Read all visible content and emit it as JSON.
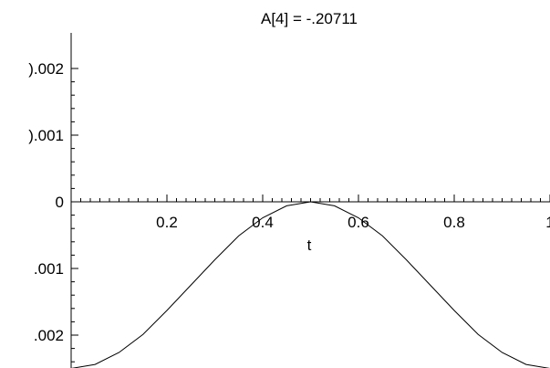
{
  "chart_data": {
    "type": "line",
    "title": "A[4] = -.20711",
    "xlabel": "t",
    "ylabel": "",
    "xlim": [
      0,
      1
    ],
    "ylim": [
      -0.0025,
      0.0021
    ],
    "grid": false,
    "x_ticks": [
      {
        "value": 0.2,
        "label": "0.2"
      },
      {
        "value": 0.4,
        "label": "0.4"
      },
      {
        "value": 0.6,
        "label": "0.6"
      },
      {
        "value": 0.8,
        "label": "0.8"
      },
      {
        "value": 1.0,
        "label": "1"
      }
    ],
    "y_ticks": [
      {
        "value": 0.002,
        "label": ").002"
      },
      {
        "value": 0.001,
        "label": ").001"
      },
      {
        "value": 0.0,
        "label": "0"
      },
      {
        "value": -0.001,
        "label": ".001"
      },
      {
        "value": -0.002,
        "label": ".002"
      }
    ],
    "series": [
      {
        "color": "#000000",
        "x": [
          0.0,
          0.05,
          0.1,
          0.15,
          0.2,
          0.25,
          0.3,
          0.35,
          0.4,
          0.45,
          0.5,
          0.55,
          0.6,
          0.65,
          0.7,
          0.75,
          0.8,
          0.85,
          0.9,
          0.95,
          1.0
        ],
        "y": [
          -0.0025,
          -0.00244,
          -0.00226,
          -0.00199,
          -0.00163,
          -0.00125,
          -0.00087,
          -0.00051,
          -0.00024,
          -6e-05,
          0.0,
          -6e-05,
          -0.00024,
          -0.00051,
          -0.00087,
          -0.00125,
          -0.00163,
          -0.00199,
          -0.00226,
          -0.00244,
          -0.0025
        ]
      }
    ]
  }
}
